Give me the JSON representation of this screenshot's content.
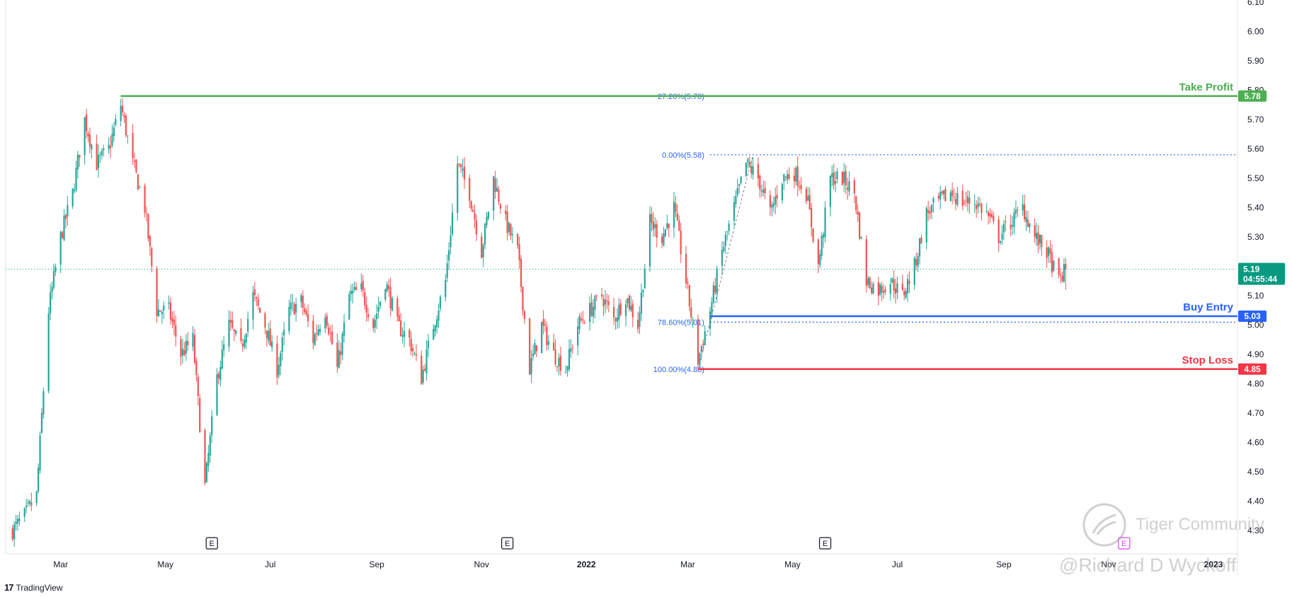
{
  "app": {
    "brand": "TradingView"
  },
  "watermark": {
    "community": "Tiger Community",
    "author": "@Richard D Wyckoff"
  },
  "colors": {
    "up": "#26a69a",
    "down": "#ef5350",
    "take_profit": "#4caf50",
    "buy_entry": "#2962ff",
    "stop_loss": "#f23645",
    "fib": "#2962ff",
    "last_price_bg": "#089981"
  },
  "chart_data": {
    "type": "candlestick",
    "title": "",
    "xlabel": "",
    "ylabel": "",
    "ylim": [
      4.25,
      6.1
    ],
    "y_ticks": [
      "4.30",
      "4.40",
      "4.50",
      "4.60",
      "4.70",
      "4.80",
      "4.90",
      "5.00",
      "5.10",
      "5.20",
      "5.30",
      "5.40",
      "5.50",
      "5.60",
      "5.70",
      "5.80",
      "5.90",
      "6.00",
      "6.10"
    ],
    "x_range": [
      "2021-01-25",
      "2023-01-31"
    ],
    "x_ticks": [
      {
        "date": "2021-03-01",
        "label": "Mar"
      },
      {
        "date": "2021-05-01",
        "label": "May"
      },
      {
        "date": "2021-07-01",
        "label": "Jul"
      },
      {
        "date": "2021-09-01",
        "label": "Sep"
      },
      {
        "date": "2021-11-01",
        "label": "Nov"
      },
      {
        "date": "2022-01-01",
        "label": "2022"
      },
      {
        "date": "2022-03-01",
        "label": "Mar"
      },
      {
        "date": "2022-05-01",
        "label": "May"
      },
      {
        "date": "2022-07-01",
        "label": "Jul"
      },
      {
        "date": "2022-09-01",
        "label": "Sep"
      },
      {
        "date": "2022-11-01",
        "label": "Nov"
      },
      {
        "date": "2023-01-01",
        "label": "2023"
      }
    ],
    "grid": false,
    "price_path": [
      [
        "2021-02-01",
        4.3
      ],
      [
        "2021-02-08",
        4.35
      ],
      [
        "2021-02-15",
        4.42
      ],
      [
        "2021-02-22",
        5.05
      ],
      [
        "2021-03-01",
        5.3
      ],
      [
        "2021-03-08",
        5.45
      ],
      [
        "2021-03-15",
        5.7
      ],
      [
        "2021-03-22",
        5.55
      ],
      [
        "2021-03-29",
        5.6
      ],
      [
        "2021-04-05",
        5.75
      ],
      [
        "2021-04-12",
        5.55
      ],
      [
        "2021-04-19",
        5.4
      ],
      [
        "2021-04-26",
        5.05
      ],
      [
        "2021-05-03",
        5.05
      ],
      [
        "2021-05-10",
        4.9
      ],
      [
        "2021-05-17",
        4.95
      ],
      [
        "2021-05-24",
        4.45
      ],
      [
        "2021-05-31",
        4.82
      ],
      [
        "2021-06-07",
        5.0
      ],
      [
        "2021-06-14",
        4.92
      ],
      [
        "2021-06-21",
        5.1
      ],
      [
        "2021-06-28",
        5.0
      ],
      [
        "2021-07-05",
        4.85
      ],
      [
        "2021-07-12",
        5.05
      ],
      [
        "2021-07-19",
        5.08
      ],
      [
        "2021-07-26",
        4.95
      ],
      [
        "2021-08-02",
        5.05
      ],
      [
        "2021-08-09",
        4.85
      ],
      [
        "2021-08-16",
        5.1
      ],
      [
        "2021-08-23",
        5.12
      ],
      [
        "2021-08-30",
        5.0
      ],
      [
        "2021-09-06",
        5.15
      ],
      [
        "2021-09-13",
        5.0
      ],
      [
        "2021-09-20",
        4.95
      ],
      [
        "2021-09-27",
        4.82
      ],
      [
        "2021-10-04",
        5.0
      ],
      [
        "2021-10-11",
        5.15
      ],
      [
        "2021-10-18",
        5.55
      ],
      [
        "2021-10-25",
        5.45
      ],
      [
        "2021-11-01",
        5.25
      ],
      [
        "2021-11-08",
        5.5
      ],
      [
        "2021-11-15",
        5.35
      ],
      [
        "2021-11-22",
        5.25
      ],
      [
        "2021-11-29",
        4.85
      ],
      [
        "2021-12-06",
        5.0
      ],
      [
        "2021-12-13",
        4.9
      ],
      [
        "2021-12-20",
        4.85
      ],
      [
        "2021-12-27",
        5.0
      ],
      [
        "2022-01-03",
        5.05
      ],
      [
        "2022-01-10",
        5.1
      ],
      [
        "2022-01-17",
        5.02
      ],
      [
        "2022-01-24",
        5.1
      ],
      [
        "2022-01-31",
        5.0
      ],
      [
        "2022-02-07",
        5.35
      ],
      [
        "2022-02-14",
        5.3
      ],
      [
        "2022-02-21",
        5.4
      ],
      [
        "2022-02-28",
        5.15
      ],
      [
        "2022-03-07",
        4.88
      ],
      [
        "2022-03-14",
        5.05
      ],
      [
        "2022-03-21",
        5.25
      ],
      [
        "2022-03-28",
        5.4
      ],
      [
        "2022-04-04",
        5.55
      ],
      [
        "2022-04-11",
        5.5
      ],
      [
        "2022-04-18",
        5.38
      ],
      [
        "2022-04-25",
        5.5
      ],
      [
        "2022-05-02",
        5.52
      ],
      [
        "2022-05-09",
        5.45
      ],
      [
        "2022-05-16",
        5.2
      ],
      [
        "2022-05-23",
        5.5
      ],
      [
        "2022-05-30",
        5.5
      ],
      [
        "2022-06-06",
        5.45
      ],
      [
        "2022-06-13",
        5.15
      ],
      [
        "2022-06-20",
        5.12
      ],
      [
        "2022-06-27",
        5.15
      ],
      [
        "2022-07-04",
        5.1
      ],
      [
        "2022-07-11",
        5.2
      ],
      [
        "2022-07-18",
        5.38
      ],
      [
        "2022-07-25",
        5.42
      ],
      [
        "2022-08-01",
        5.45
      ],
      [
        "2022-08-08",
        5.42
      ],
      [
        "2022-08-15",
        5.42
      ],
      [
        "2022-08-22",
        5.38
      ],
      [
        "2022-08-29",
        5.3
      ],
      [
        "2022-09-05",
        5.35
      ],
      [
        "2022-09-12",
        5.4
      ],
      [
        "2022-09-19",
        5.3
      ],
      [
        "2022-09-26",
        5.25
      ],
      [
        "2022-10-03",
        5.15
      ],
      [
        "2022-10-07",
        5.19
      ]
    ],
    "levels": [
      {
        "name": "Take Profit",
        "price": 5.78,
        "label": "Take Profit",
        "badge": "5.78",
        "color": "#4caf50",
        "start": "2021-04-05"
      },
      {
        "name": "Buy Entry",
        "price": 5.03,
        "label": "Buy Entry",
        "badge": "5.03",
        "color": "#2962ff",
        "start": "2022-03-14"
      },
      {
        "name": "Stop Loss",
        "price": 4.85,
        "label": "Stop Loss",
        "badge": "4.85",
        "color": "#f23645",
        "start": "2022-03-07"
      }
    ],
    "fib_levels": [
      {
        "label": "27.20%(5.78)",
        "price": 5.78
      },
      {
        "label": "0.00%(5.58)",
        "price": 5.58
      },
      {
        "label": "78.60%(5.01)",
        "price": 5.01
      },
      {
        "label": "100.00%(4.85)",
        "price": 4.85
      }
    ],
    "fib_start": "2022-03-14",
    "last_price": {
      "value": "5.19",
      "countdown": "04:55:44",
      "price": 5.19
    },
    "earnings_markers": [
      {
        "date": "2021-05-28",
        "label": "E"
      },
      {
        "date": "2021-11-16",
        "label": "E"
      },
      {
        "date": "2022-05-20",
        "label": "E"
      },
      {
        "date": "2022-11-10",
        "label": "E",
        "future": true
      }
    ]
  }
}
